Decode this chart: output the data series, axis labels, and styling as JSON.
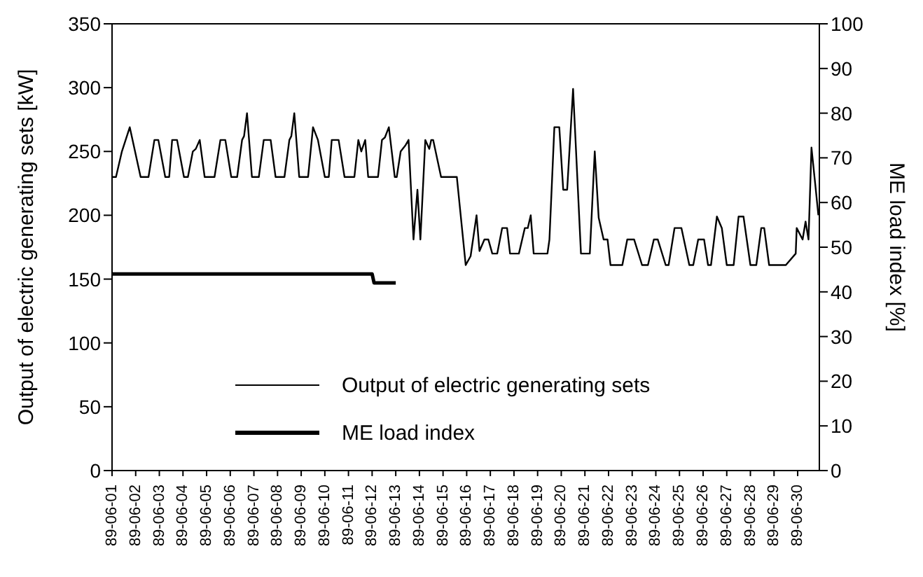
{
  "chart_data": {
    "type": "line",
    "ylabel": "Output of electric generating sets [kW]",
    "y2label": "ME load index [%]",
    "xlim": [
      "--06-01",
      "--06-30T22:00"
    ],
    "xticks": [
      {
        "value": "--06-01",
        "label": "89-06-01"
      },
      {
        "value": "--06-02",
        "label": "89-06-02"
      },
      {
        "value": "--06-03",
        "label": "89-06-03"
      },
      {
        "value": "--06-04",
        "label": "89-06-04"
      },
      {
        "value": "--06-05",
        "label": "89-06-05"
      },
      {
        "value": "--06-06",
        "label": "89-06-06"
      },
      {
        "value": "--06-07",
        "label": "89-06-07"
      },
      {
        "value": "--06-08",
        "label": "89-06-08"
      },
      {
        "value": "--06-09",
        "label": "89-06-09"
      },
      {
        "value": "--06-10",
        "label": "89-06-10"
      },
      {
        "value": "--06-11",
        "label": "89-06-11"
      },
      {
        "value": "--06-12",
        "label": "89-06-12"
      },
      {
        "value": "--06-13",
        "label": "89-06-13"
      },
      {
        "value": "--06-14",
        "label": "89-06-14"
      },
      {
        "value": "--06-15",
        "label": "89-06-15"
      },
      {
        "value": "--06-16",
        "label": "89-06-16"
      },
      {
        "value": "--06-17",
        "label": "89-06-17"
      },
      {
        "value": "--06-18",
        "label": "89-06-18"
      },
      {
        "value": "--06-19",
        "label": "89-06-19"
      },
      {
        "value": "--06-20",
        "label": "89-06-20"
      },
      {
        "value": "--06-21",
        "label": "89-06-21"
      },
      {
        "value": "--06-22",
        "label": "89-06-22"
      },
      {
        "value": "--06-23",
        "label": "89-06-23"
      },
      {
        "value": "--06-24",
        "label": "89-06-24"
      },
      {
        "value": "--06-25",
        "label": "89-06-25"
      },
      {
        "value": "--06-26",
        "label": "89-06-26"
      },
      {
        "value": "--06-27",
        "label": "89-06-27"
      },
      {
        "value": "--06-28",
        "label": "89-06-28"
      },
      {
        "value": "--06-29",
        "label": "89-06-29"
      },
      {
        "value": "--06-30",
        "label": "89-06-30"
      }
    ],
    "ylim": [
      0,
      350
    ],
    "yticks": [
      0,
      50,
      100,
      150,
      200,
      250,
      300,
      350
    ],
    "y2lim": [
      0,
      100
    ],
    "y2ticks": [
      0,
      10,
      20,
      30,
      40,
      50,
      60,
      70,
      80,
      90,
      100
    ],
    "grid": false,
    "legend": "bottom",
    "marker": "none",
    "series": [
      {
        "name": "Output of electric generating sets",
        "color": "#000000",
        "x": [
          "--06-01T00:00",
          "--06-01T04:00",
          "--06-01T10:00",
          "--06-01T18:00",
          "--06-02T05:00",
          "--06-02T13:00",
          "--06-02T19:00",
          "--06-02T23:00",
          "--06-03T06:00",
          "--06-03T10:00",
          "--06-03T13:00",
          "--06-03T18:00",
          "--06-04T01:00",
          "--06-04T05:00",
          "--06-04T10:00",
          "--06-04T13:00",
          "--06-04T17:00",
          "--06-04T22:00",
          "--06-05T08:00",
          "--06-05T14:00",
          "--06-05T19:00",
          "--06-06T01:00",
          "--06-06T07:00",
          "--06-06T12:00",
          "--06-06T14:00",
          "--06-06T17:00",
          "--06-06T22:00",
          "--06-07T05:00",
          "--06-07T10:00",
          "--06-07T17:00",
          "--06-07T22:00",
          "--06-08T07:00",
          "--06-08T12:00",
          "--06-08T14:00",
          "--06-08T17:00",
          "--06-08T22:00",
          "--06-09T07:00",
          "--06-09T12:00",
          "--06-09T17:00",
          "--06-10T00:00",
          "--06-10T04:00",
          "--06-10T07:00",
          "--06-10T14:00",
          "--06-10T20:00",
          "--06-11T06:00",
          "--06-11T10:00",
          "--06-11T13:00",
          "--06-11T17:00",
          "--06-11T20:00",
          "--06-12T06:00",
          "--06-12T10:00",
          "--06-12T13:00",
          "--06-12T17:00",
          "--06-12T23:00",
          "--06-13T01:00",
          "--06-13T05:00",
          "--06-13T10:00",
          "--06-13T13:00",
          "--06-13T18:00",
          "--06-13T22:00",
          "--06-14T01:00",
          "--06-14T06:00",
          "--06-14T10:00",
          "--06-14T12:00",
          "--06-14T14:00",
          "--06-14T22:00",
          "--06-15T14:00",
          "--06-15T23:00",
          "--06-16T04:00",
          "--06-16T10:00",
          "--06-16T13:00",
          "--06-16T18:00",
          "--06-16T22:00",
          "--06-17T02:00",
          "--06-17T07:00",
          "--06-17T12:00",
          "--06-17T17:00",
          "--06-17T20:00",
          "--06-18T05:00",
          "--06-18T11:00",
          "--06-18T14:00",
          "--06-18T17:00",
          "--06-18T20:00",
          "--06-19T10:00",
          "--06-19T12:00",
          "--06-19T17:00",
          "--06-19T22:00",
          "--06-20T02:00",
          "--06-20T06:00",
          "--06-20T12:00",
          "--06-20T20:00",
          "--06-21T05:00",
          "--06-21T10:00",
          "--06-21T14:00",
          "--06-21T19:00",
          "--06-21T23:00",
          "--06-22T02:00",
          "--06-22T14:00",
          "--06-22T19:00",
          "--06-23T02:00",
          "--06-23T10:00",
          "--06-23T16:00",
          "--06-23T22:00",
          "--06-24T02:00",
          "--06-24T10:00",
          "--06-24T13:00",
          "--06-24T19:00",
          "--06-25T02:00",
          "--06-25T10:00",
          "--06-25T14:00",
          "--06-25T19:00",
          "--06-26T01:00",
          "--06-26T05:00",
          "--06-26T08:00",
          "--06-26T14:00",
          "--06-26T19:00",
          "--06-27T00:00",
          "--06-27T07:00",
          "--06-27T12:00",
          "--06-27T17:00",
          "--06-28T00:00",
          "--06-28T06:00",
          "--06-28T11:00",
          "--06-28T14:00",
          "--06-28T19:00",
          "--06-29T12:00",
          "--06-29T22:00",
          "--06-29T23:00",
          "--06-30T05:00",
          "--06-30T08:00",
          "--06-30T11:00",
          "--06-30T14:00",
          "--06-30T18:00",
          "--06-30T21:00"
        ],
        "values": [
          230,
          230,
          250,
          269,
          230,
          230,
          259,
          259,
          230,
          230,
          259,
          259,
          230,
          230,
          250,
          252,
          259,
          230,
          230,
          259,
          259,
          230,
          230,
          259,
          262,
          280,
          230,
          230,
          259,
          259,
          230,
          230,
          259,
          262,
          280,
          230,
          230,
          269,
          259,
          230,
          230,
          259,
          259,
          230,
          230,
          259,
          250,
          259,
          230,
          230,
          259,
          261,
          269,
          230,
          230,
          250,
          255,
          259,
          181,
          220,
          181,
          259,
          252,
          259,
          259,
          230,
          230,
          161,
          168,
          200,
          172,
          181,
          181,
          170,
          170,
          190,
          190,
          170,
          170,
          190,
          190,
          200,
          170,
          170,
          181,
          269,
          269,
          220,
          220,
          299,
          170,
          170,
          250,
          198,
          181,
          181,
          161,
          161,
          181,
          181,
          161,
          161,
          181,
          181,
          161,
          161,
          190,
          190,
          161,
          161,
          181,
          181,
          161,
          161,
          199,
          190,
          161,
          161,
          199,
          199,
          161,
          161,
          190,
          190,
          161,
          161,
          170,
          190,
          181,
          195,
          181,
          253,
          223,
          200
        ]
      },
      {
        "name": "ME load index",
        "color": "#000000",
        "axis": "y2",
        "x": [
          "--06-01T00:00",
          "--06-12T00:00",
          "--06-12T02:00",
          "--06-13T00:00"
        ],
        "values": [
          44,
          44,
          42,
          42
        ]
      }
    ]
  }
}
